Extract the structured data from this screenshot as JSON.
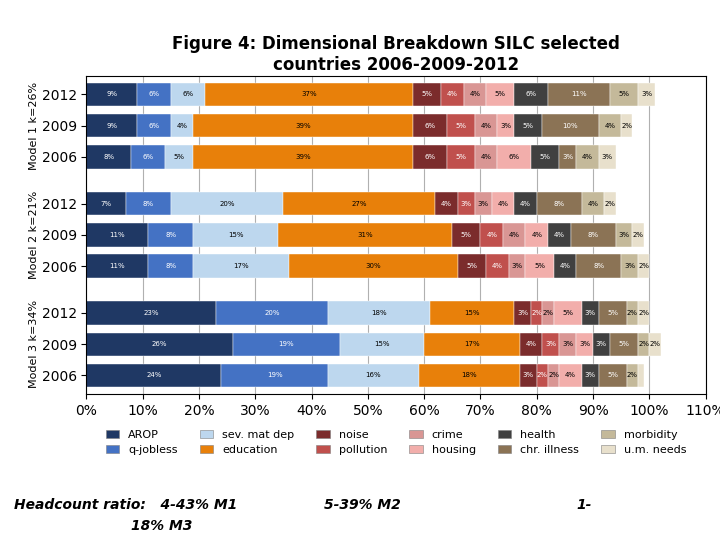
{
  "chart_data": {
    "type": "bar",
    "orientation": "horizontal",
    "stacked": true,
    "title": "Figure 4: Dimensional Breakdown SILC selected\ncountries 2006-2009-2012",
    "categories": [
      "2012",
      "2009",
      "2006",
      "2012",
      "2009",
      "2006",
      "2012",
      "2009",
      "2006"
    ],
    "group_labels": [
      "Model 1 k=26%",
      "Model 2 k=21%",
      "Model 3 k=34%"
    ],
    "series": [
      {
        "name": "AROP",
        "color": "#1F3864",
        "values": [
          9,
          9,
          8,
          7,
          11,
          11,
          23,
          26,
          24
        ],
        "value_labels": [
          "9%",
          "9%",
          "8%",
          "7%",
          "11%",
          "11%",
          "23%",
          "26%",
          "24%"
        ]
      },
      {
        "name": "q-jobless",
        "color": "#4472C4",
        "values": [
          6,
          6,
          6,
          8,
          8,
          8,
          20,
          19,
          19
        ],
        "value_labels": [
          "6%",
          "6%",
          "6%",
          "8%",
          "8%",
          "8%",
          "20%",
          "19%",
          "19%"
        ]
      },
      {
        "name": "sev. mat dep",
        "color": "#BDD7EE",
        "values": [
          6,
          4,
          5,
          20,
          15,
          17,
          18,
          15,
          16
        ],
        "value_labels": [
          "6%",
          "4%",
          "5%",
          "20%",
          "15%",
          "17%",
          "18%",
          "15%",
          "16%"
        ]
      },
      {
        "name": "education",
        "color": "#E8800A",
        "values": [
          37,
          39,
          39,
          27,
          31,
          30,
          15,
          17,
          18
        ],
        "value_labels": [
          "37%",
          "39%",
          "39%",
          "27%",
          "31%",
          "30%",
          "15%",
          "17%",
          "18%"
        ]
      },
      {
        "name": "noise",
        "color": "#7B2C2C",
        "values": [
          5,
          6,
          6,
          4,
          5,
          5,
          3,
          4,
          3
        ],
        "value_labels": [
          "5%",
          "6%",
          "6%",
          "4%",
          "5%",
          "5%",
          "3%",
          "4%",
          "3%"
        ]
      },
      {
        "name": "pollution",
        "color": "#C0504D",
        "values": [
          4,
          5,
          5,
          3,
          4,
          4,
          2,
          3,
          2
        ],
        "value_labels": [
          "4%",
          "5%",
          "5%",
          "3%",
          "4%",
          "4%",
          "2%",
          "3%",
          "2%"
        ]
      },
      {
        "name": "crime",
        "color": "#D99694",
        "values": [
          4,
          4,
          4,
          3,
          4,
          3,
          2,
          3,
          2
        ],
        "value_labels": [
          "4%",
          "4%",
          "4%",
          "3%",
          "4%",
          "3%",
          "2%",
          "3%",
          "2%"
        ]
      },
      {
        "name": "housing",
        "color": "#F2AEAB",
        "values": [
          5,
          3,
          6,
          4,
          4,
          5,
          5,
          3,
          4
        ],
        "value_labels": [
          "5%",
          "3%",
          "6%",
          "4%",
          "4%",
          "5%",
          "5%",
          "3%",
          "4%"
        ]
      },
      {
        "name": "health",
        "color": "#404040",
        "values": [
          6,
          5,
          5,
          4,
          4,
          4,
          3,
          3,
          3
        ],
        "value_labels": [
          "6%",
          "5%",
          "5%",
          "4%",
          "4%",
          "4%",
          "3%",
          "3%",
          "3%"
        ]
      },
      {
        "name": "chr. illness",
        "color": "#8B7355",
        "values": [
          11,
          10,
          3,
          8,
          8,
          8,
          5,
          5,
          5
        ],
        "value_labels": [
          "11%",
          "10%",
          "3%",
          "8%",
          "8%",
          "8%",
          "5%",
          "5%",
          "5%"
        ]
      },
      {
        "name": "morbidity",
        "color": "#C4B99A",
        "values": [
          5,
          4,
          4,
          4,
          3,
          3,
          2,
          2,
          2
        ],
        "value_labels": [
          "5%",
          "4%",
          "4%",
          "4%",
          "3%",
          "3%",
          "2%",
          "2%",
          "2%"
        ]
      },
      {
        "name": "u.m. needs",
        "color": "#E8E0CC",
        "values": [
          3,
          2,
          3,
          2,
          2,
          2,
          2,
          2,
          1
        ],
        "value_labels": [
          "3%",
          "2%",
          "3%",
          "2%",
          "2%",
          "2%",
          "2%",
          "2%",
          null
        ]
      }
    ],
    "xlim": [
      0,
      110
    ],
    "xticks": [
      {
        "value": 0,
        "label": "0%"
      },
      {
        "value": 10,
        "label": "10%"
      },
      {
        "value": 20,
        "label": "20%"
      },
      {
        "value": 30,
        "label": "30%"
      },
      {
        "value": 40,
        "label": "40%"
      },
      {
        "value": 50,
        "label": "50%"
      },
      {
        "value": 60,
        "label": "60%"
      },
      {
        "value": 70,
        "label": "70%"
      },
      {
        "value": 80,
        "label": "80%"
      },
      {
        "value": 90,
        "label": "90%"
      },
      {
        "value": 100,
        "label": "100%"
      },
      {
        "value": 110,
        "label": "110%"
      }
    ],
    "grid": true,
    "legend": "upper center",
    "data_labels": true,
    "annotations": [
      "Headcount ratio:   4-43% M1",
      "5-39% M2",
      "1-",
      "                        18% M3"
    ]
  }
}
